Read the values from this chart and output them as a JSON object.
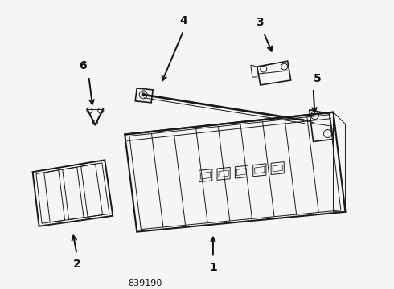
{
  "title": "839190",
  "bg_color": "#f5f5f5",
  "line_color": "#1a1a1a",
  "text_color": "#111111",
  "fig_width": 4.9,
  "fig_height": 3.6,
  "dpi": 100
}
